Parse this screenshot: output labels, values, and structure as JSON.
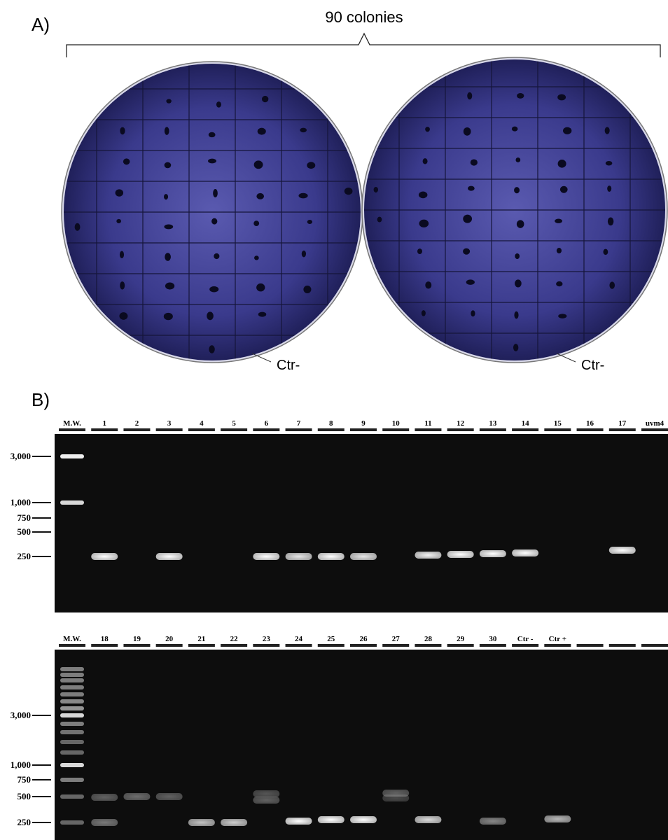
{
  "panel_a": {
    "label": "A)",
    "title": "90 colonies",
    "plates": [
      {
        "control_label": "Ctr-"
      },
      {
        "control_label": "Ctr-"
      }
    ]
  },
  "panel_b": {
    "label": "B)",
    "gels": [
      {
        "lanes": [
          "M.W.",
          "1",
          "2",
          "3",
          "4",
          "5",
          "6",
          "7",
          "8",
          "9",
          "10",
          "11",
          "12",
          "13",
          "14",
          "15",
          "16",
          "17",
          "uvm4"
        ],
        "size_markers": [
          "3,000",
          "1,000",
          "750",
          "500",
          "250"
        ]
      },
      {
        "lanes": [
          "M.W.",
          "18",
          "19",
          "20",
          "21",
          "22",
          "23",
          "24",
          "25",
          "26",
          "27",
          "28",
          "29",
          "30",
          "Ctr -",
          "Ctr +"
        ],
        "size_markers": [
          "3,000",
          "1,000",
          "750",
          "500",
          "250"
        ]
      }
    ]
  }
}
